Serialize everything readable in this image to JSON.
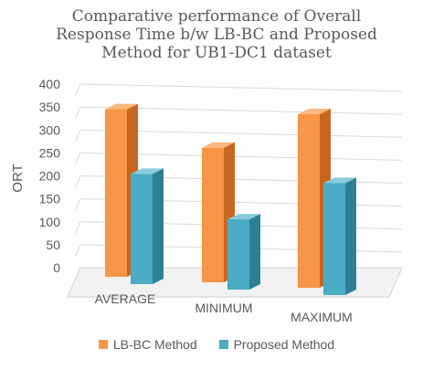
{
  "chart_data": {
    "type": "bar",
    "title": [
      "Comparative performance of Overall",
      "Response Time b/w LB-BC and Proposed",
      "Method for UB1-DC1 dataset"
    ],
    "ylabel": "ORT",
    "xlabel": "",
    "ylim": [
      0,
      400
    ],
    "yticks": [
      0,
      50,
      100,
      150,
      200,
      250,
      300,
      350,
      400
    ],
    "categories": [
      "AVERAGE",
      "MINIMUM",
      "MAXIMUM"
    ],
    "series": [
      {
        "name": "LB-BC Method",
        "values": [
          365,
          293,
          378
        ],
        "color": "#F79646",
        "side_color": "#C8651F",
        "top_color": "#FAB77F"
      },
      {
        "name": "Proposed Method",
        "values": [
          240,
          153,
          244
        ],
        "color": "#4BACC6",
        "side_color": "#2E7F96",
        "top_color": "#8ACCDD"
      }
    ],
    "grid": true,
    "legend_position": "bottom"
  }
}
